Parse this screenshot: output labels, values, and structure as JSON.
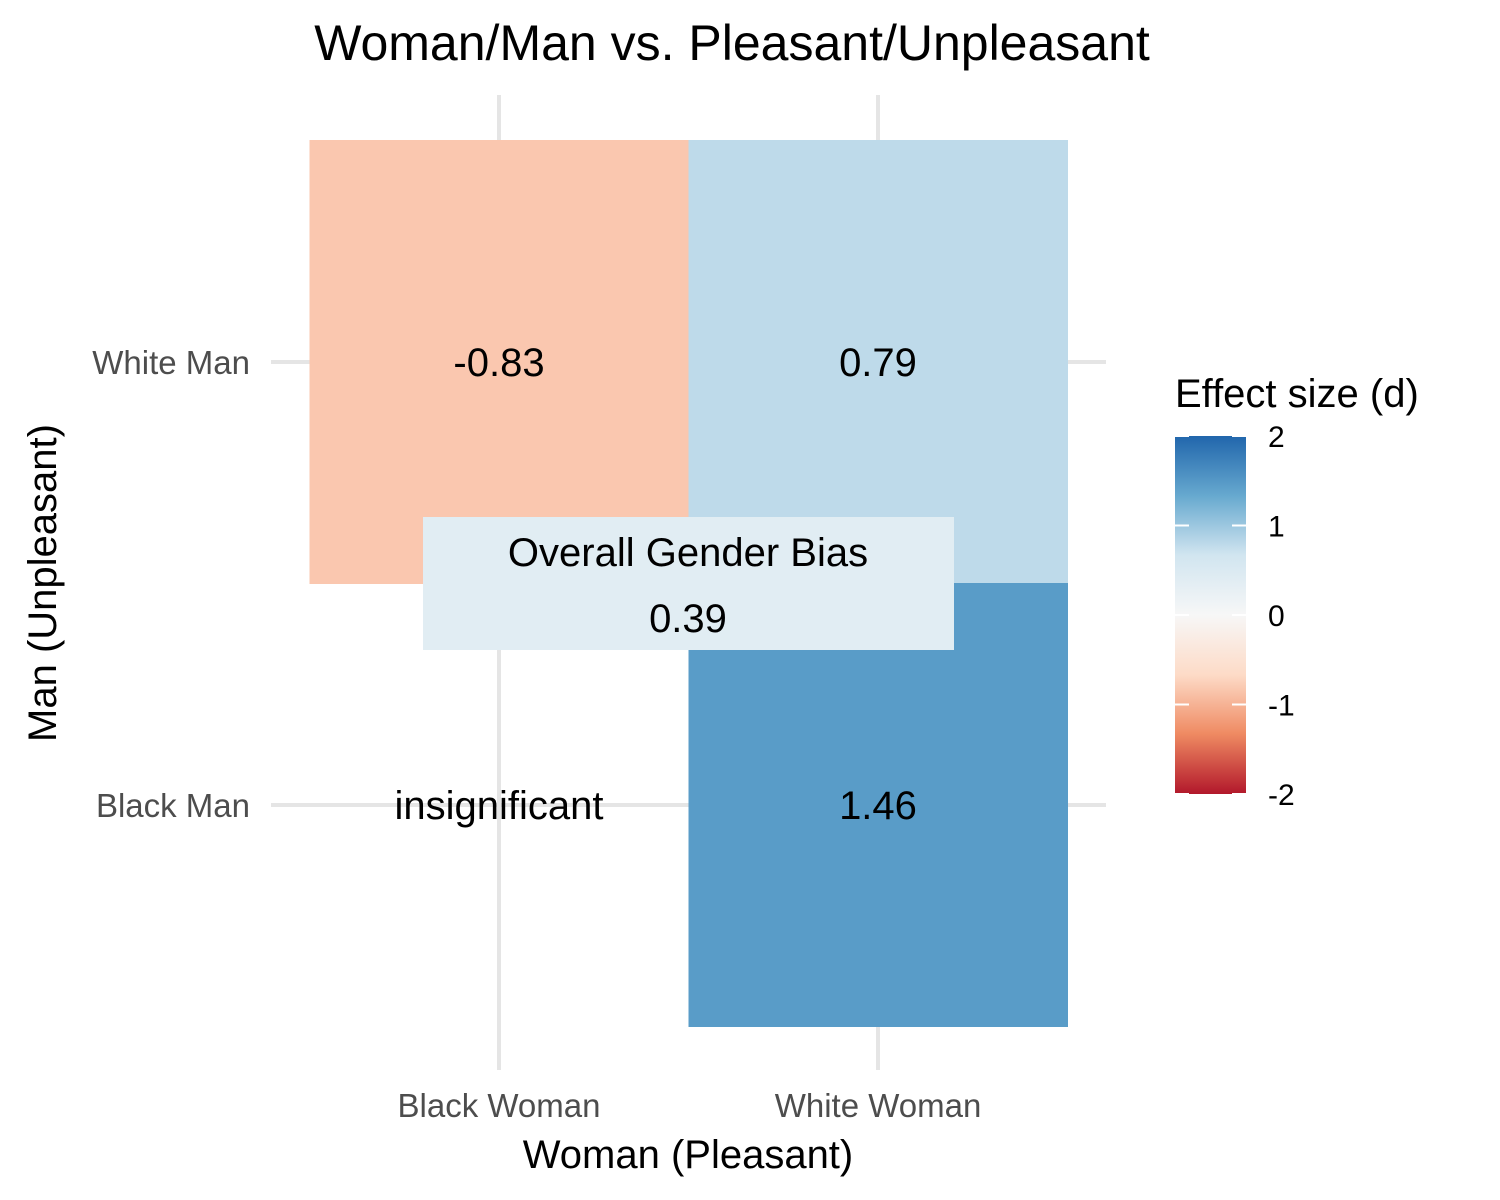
{
  "chart_data": {
    "type": "heatmap",
    "title": "Woman/Man vs. Pleasant/Unpleasant",
    "xlabel": "Woman (Pleasant)",
    "ylabel": "Man (Unpleasant)",
    "x_categories": [
      "Black Woman",
      "White Woman"
    ],
    "y_categories": [
      "White Man",
      "Black Man"
    ],
    "cells": [
      {
        "x": "Black Woman",
        "y": "White Man",
        "value": -0.83,
        "label": "-0.83"
      },
      {
        "x": "White Woman",
        "y": "White Man",
        "value": 0.79,
        "label": "0.79"
      },
      {
        "x": "Black Woman",
        "y": "Black Man",
        "value": null,
        "label": "insignificant"
      },
      {
        "x": "White Woman",
        "y": "Black Man",
        "value": 1.46,
        "label": "1.46"
      }
    ],
    "overall": {
      "label": "Overall Gender Bias",
      "value": 0.39,
      "value_label": "0.39"
    },
    "legend": {
      "title": "Effect size (d)",
      "range": [
        -2,
        2
      ],
      "ticks": [
        2,
        1,
        0,
        -1,
        -2
      ],
      "tick_labels": [
        "2",
        "1",
        "0",
        "-1",
        "-2"
      ]
    },
    "colors": {
      "neg_strong": "#b2182b",
      "neg_mid": "#ef8a62",
      "neg_light": "#fddbc7",
      "neutral": "#f7f7f7",
      "pos_light": "#d1e5f0",
      "pos_mid": "#67a9cf",
      "pos_strong": "#2166ac",
      "grid": "#e5e5e5"
    },
    "grid": true,
    "legend_position": "right"
  }
}
